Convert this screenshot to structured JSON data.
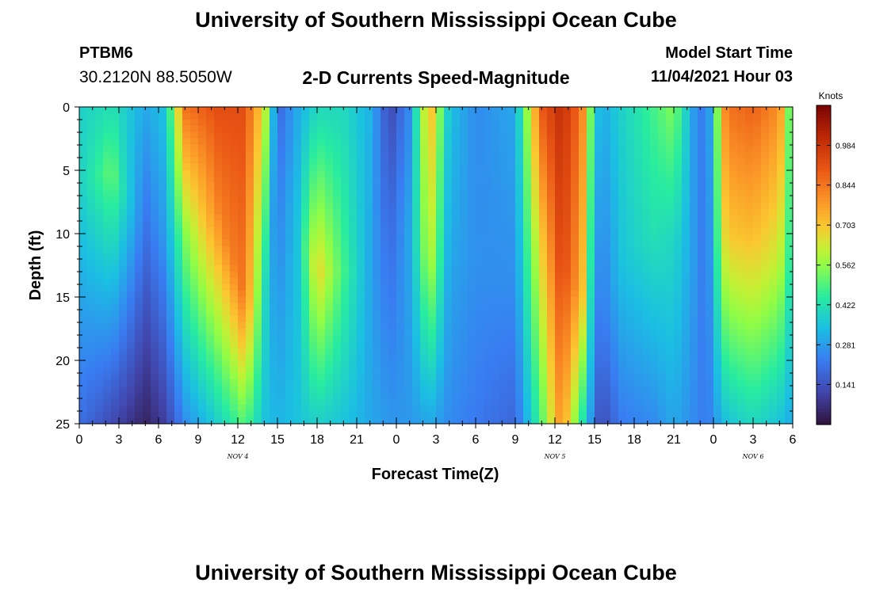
{
  "page": {
    "title": "University of Southern Mississippi Ocean Cube",
    "station_id": "PTBM6",
    "station_coords": "30.2120N  88.5050W",
    "plot_title": "2-D Currents Speed-Magnitude",
    "model_start_label": "Model Start Time",
    "model_start_value": "11/04/2021 Hour 03",
    "footer_title": "University of Southern Mississippi Ocean Cube"
  },
  "chart_data": {
    "type": "heatmap",
    "title": "2-D Currents Speed-Magnitude",
    "xlabel": "Forecast Time(Z)",
    "ylabel": "Depth (ft)",
    "x_tick_labels": [
      "0",
      "3",
      "6",
      "9",
      "12",
      "15",
      "18",
      "21",
      "0",
      "3",
      "6",
      "9",
      "12",
      "15",
      "18",
      "21",
      "0",
      "3",
      "6"
    ],
    "x_range_hours": [
      0,
      54
    ],
    "date_labels": [
      {
        "text": "NOV 4",
        "hour": 12
      },
      {
        "text": "NOV 5",
        "hour": 36
      },
      {
        "text": "NOV 6",
        "hour": 51
      }
    ],
    "y_tick_labels": [
      "0",
      "5",
      "10",
      "15",
      "20",
      "25"
    ],
    "y_range": [
      0,
      25
    ],
    "y_reversed": true,
    "colorbar": {
      "label": "Knots",
      "ticks": [
        "0.984",
        "0.844",
        "0.703",
        "0.562",
        "0.422",
        "0.281",
        "0.141"
      ],
      "range": [
        0,
        1.125
      ]
    },
    "column_profiles": [
      {
        "hour": 0,
        "top": 0.38,
        "mid": 0.38,
        "depth_mid": 6,
        "bot": 0.2
      },
      {
        "hour": 2.5,
        "top": 0.42,
        "mid": 0.52,
        "depth_mid": 5,
        "bot": 0.12
      },
      {
        "hour": 5,
        "top": 0.3,
        "mid": 0.2,
        "depth_mid": 10,
        "bot": 0.04
      },
      {
        "hour": 6.5,
        "top": 0.35,
        "mid": 0.28,
        "depth_mid": 10,
        "bot": 0.1
      },
      {
        "hour": 8,
        "top": 0.85,
        "mid": 0.55,
        "depth_mid": 10,
        "bot": 0.25
      },
      {
        "hour": 10.5,
        "top": 0.92,
        "mid": 0.82,
        "depth_mid": 8,
        "bot": 0.38
      },
      {
        "hour": 12.5,
        "top": 0.92,
        "mid": 0.84,
        "depth_mid": 15,
        "bot": 0.5
      },
      {
        "hour": 14,
        "top": 0.65,
        "mid": 0.42,
        "depth_mid": 15,
        "bot": 0.35
      },
      {
        "hour": 15,
        "top": 0.18,
        "mid": 0.22,
        "depth_mid": 6,
        "bot": 0.32
      },
      {
        "hour": 16.5,
        "top": 0.3,
        "mid": 0.35,
        "depth_mid": 10,
        "bot": 0.35
      },
      {
        "hour": 18,
        "top": 0.4,
        "mid": 0.68,
        "depth_mid": 13,
        "bot": 0.38
      },
      {
        "hour": 20,
        "top": 0.4,
        "mid": 0.48,
        "depth_mid": 13,
        "bot": 0.35
      },
      {
        "hour": 22,
        "top": 0.32,
        "mid": 0.3,
        "depth_mid": 13,
        "bot": 0.3
      },
      {
        "hour": 23.5,
        "top": 0.12,
        "mid": 0.18,
        "depth_mid": 8,
        "bot": 0.27
      },
      {
        "hour": 25,
        "top": 0.25,
        "mid": 0.3,
        "depth_mid": 10,
        "bot": 0.27
      },
      {
        "hour": 26.5,
        "top": 0.75,
        "mid": 0.62,
        "depth_mid": 12,
        "bot": 0.3
      },
      {
        "hour": 28,
        "top": 0.35,
        "mid": 0.3,
        "depth_mid": 12,
        "bot": 0.25
      },
      {
        "hour": 30,
        "top": 0.25,
        "mid": 0.26,
        "depth_mid": 12,
        "bot": 0.22
      },
      {
        "hour": 33,
        "top": 0.3,
        "mid": 0.25,
        "depth_mid": 15,
        "bot": 0.18
      },
      {
        "hour": 35,
        "top": 0.9,
        "mid": 0.7,
        "depth_mid": 10,
        "bot": 0.5
      },
      {
        "hour": 36.5,
        "top": 1.0,
        "mid": 0.95,
        "depth_mid": 12,
        "bot": 0.8
      },
      {
        "hour": 38,
        "top": 0.85,
        "mid": 0.75,
        "depth_mid": 15,
        "bot": 0.45
      },
      {
        "hour": 39,
        "top": 0.4,
        "mid": 0.3,
        "depth_mid": 12,
        "bot": 0.2
      },
      {
        "hour": 39.5,
        "top": 0.3,
        "mid": 0.2,
        "depth_mid": 18,
        "bot": 0.12
      },
      {
        "hour": 41,
        "top": 0.38,
        "mid": 0.35,
        "depth_mid": 12,
        "bot": 0.22
      },
      {
        "hour": 43.5,
        "top": 0.48,
        "mid": 0.42,
        "depth_mid": 10,
        "bot": 0.25
      },
      {
        "hour": 45,
        "top": 0.55,
        "mid": 0.4,
        "depth_mid": 10,
        "bot": 0.3
      },
      {
        "hour": 46.5,
        "top": 0.28,
        "mid": 0.28,
        "depth_mid": 12,
        "bot": 0.25
      },
      {
        "hour": 47.5,
        "top": 0.2,
        "mid": 0.2,
        "depth_mid": 12,
        "bot": 0.22
      },
      {
        "hour": 49,
        "top": 0.85,
        "mid": 0.7,
        "depth_mid": 10,
        "bot": 0.35
      },
      {
        "hour": 51,
        "top": 0.88,
        "mid": 0.72,
        "depth_mid": 10,
        "bot": 0.4
      },
      {
        "hour": 53,
        "top": 0.8,
        "mid": 0.62,
        "depth_mid": 12,
        "bot": 0.35
      },
      {
        "hour": 54,
        "top": 0.42,
        "mid": 0.4,
        "depth_mid": 12,
        "bot": 0.3
      }
    ]
  }
}
